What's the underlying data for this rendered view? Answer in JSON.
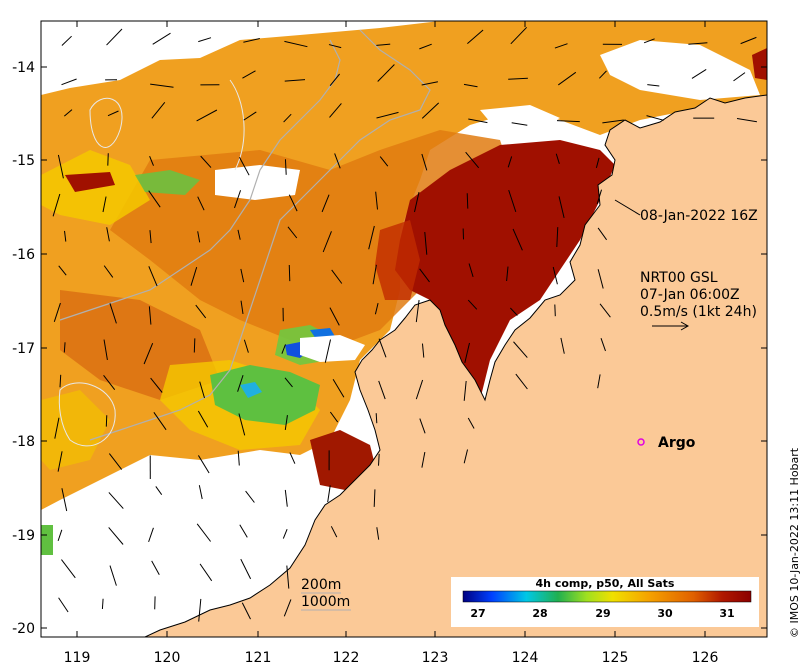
{
  "map": {
    "x_ticks": [
      "119",
      "120",
      "121",
      "122",
      "123",
      "124",
      "125",
      "126"
    ],
    "y_ticks": [
      "-14",
      "-15",
      "-16",
      "-17",
      "-18",
      "-19",
      "-20"
    ],
    "annotations": {
      "timestamp": "08-Jan-2022 16Z",
      "current_model": "NRT00 GSL",
      "current_time": "07-Jan 06:00Z",
      "current_scale": "0.5m/s (1kt 24h)",
      "argo_label": "Argo"
    },
    "contours": {
      "label_200": "200m",
      "label_1000": "1000m"
    },
    "colorbar": {
      "title": "4h comp, p50, All Sats",
      "ticks": [
        "27",
        "28",
        "29",
        "30",
        "31"
      ],
      "colors": [
        "#000080",
        "#0050ff",
        "#00c8e6",
        "#20c050",
        "#a0e020",
        "#f0e000",
        "#f5a000",
        "#e06000",
        "#b01800",
        "#8b0000"
      ]
    },
    "credit": "© IMOS 10-Jan-2022 13:11 Hobart",
    "land_color": "#fbc997",
    "no_data_color": "#ffffff",
    "argo_color": "#e000e0"
  }
}
